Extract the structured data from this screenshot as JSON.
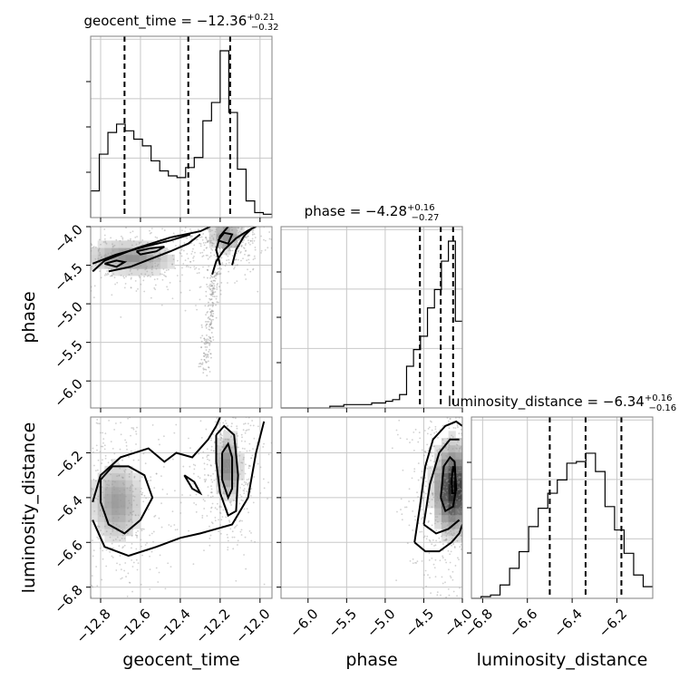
{
  "chart_data": {
    "type": "corner",
    "parameters": [
      "geocent_time",
      "phase",
      "luminosity_distance"
    ],
    "axis_labels": {
      "geocent_time": "geocent_time",
      "phase": "phase",
      "luminosity_distance": "luminosity_distance"
    },
    "ranges": {
      "geocent_time": [
        -12.85,
        -11.94
      ],
      "phase": [
        -6.35,
        -4.0
      ],
      "luminosity_distance": [
        -6.85,
        -6.04
      ]
    },
    "ticks": {
      "geocent_time": [
        {
          "v": -12.8,
          "label": "−12.8"
        },
        {
          "v": -12.6,
          "label": "−12.6"
        },
        {
          "v": -12.4,
          "label": "−12.4"
        },
        {
          "v": -12.2,
          "label": "−12.2"
        },
        {
          "v": -12.0,
          "label": "−12.0"
        }
      ],
      "phase": [
        {
          "v": -6.0,
          "label": "−6.0"
        },
        {
          "v": -5.5,
          "label": "−5.5"
        },
        {
          "v": -5.0,
          "label": "−5.0"
        },
        {
          "v": -4.5,
          "label": "−4.5"
        },
        {
          "v": -4.0,
          "label": "−4.0"
        }
      ],
      "luminosity_distance": [
        {
          "v": -6.8,
          "label": "−6.8"
        },
        {
          "v": -6.6,
          "label": "−6.6"
        },
        {
          "v": -6.4,
          "label": "−6.4"
        },
        {
          "v": -6.2,
          "label": "−6.2"
        }
      ]
    },
    "titles": {
      "geocent_time": {
        "main": "geocent_time = −12.36",
        "sup": "+0.21",
        "sub": "−0.32"
      },
      "phase": {
        "main": "phase = −4.28",
        "sup": "+0.16",
        "sub": "−0.27"
      },
      "luminosity_distance": {
        "main": "luminosity_distance = −6.34",
        "sup": "+0.16",
        "sub": "−0.16"
      }
    },
    "quantiles": {
      "geocent_time": [
        -12.68,
        -12.36,
        -12.15
      ],
      "phase": [
        -4.55,
        -4.28,
        -4.12
      ],
      "luminosity_distance": [
        -6.5,
        -6.34,
        -6.18
      ]
    },
    "histograms": {
      "geocent_time": {
        "edges_range": [
          -12.85,
          -11.94
        ],
        "counts": [
          0.16,
          0.38,
          0.51,
          0.56,
          0.52,
          0.47,
          0.43,
          0.34,
          0.28,
          0.25,
          0.24,
          0.3,
          0.36,
          0.58,
          0.69,
          1.0,
          0.63,
          0.29,
          0.1,
          0.03,
          0.02
        ]
      },
      "phase": {
        "edges_range": [
          -6.35,
          -4.0
        ],
        "counts": [
          0.0,
          0.0,
          0.0,
          0.0,
          0.0,
          0.0,
          0.0,
          0.01,
          0.01,
          0.02,
          0.02,
          0.02,
          0.02,
          0.03,
          0.03,
          0.04,
          0.05,
          0.08,
          0.25,
          0.35,
          0.43,
          0.6,
          0.71,
          0.88,
          1.0,
          0.52
        ]
      },
      "luminosity_distance": {
        "edges_range": [
          -6.85,
          -6.04
        ],
        "counts": [
          0.0,
          0.01,
          0.02,
          0.08,
          0.18,
          0.28,
          0.43,
          0.54,
          0.63,
          0.71,
          0.81,
          0.82,
          0.87,
          0.76,
          0.55,
          0.41,
          0.27,
          0.14,
          0.07
        ]
      }
    },
    "pairs": [
      {
        "x": "geocent_time",
        "y": "phase",
        "modes": [
          {
            "cx": -12.65,
            "cy": -4.4,
            "sx": 0.14,
            "sy": 0.12,
            "w": 0.5,
            "rot": -0.55
          },
          {
            "cx": -12.17,
            "cy": -4.12,
            "sx": 0.05,
            "sy": 0.12,
            "w": 0.5,
            "rot": 0.0
          }
        ],
        "tail": {
          "x0": -12.22,
          "y0": -4.6,
          "x1": -12.28,
          "y1": -5.9
        },
        "contours": [
          [
            [
              -12.84,
              -4.58
            ],
            [
              -12.78,
              -4.44
            ],
            [
              -12.62,
              -4.28
            ],
            [
              -12.45,
              -4.14
            ],
            [
              -12.3,
              -4.06
            ],
            [
              -12.25,
              -4.0
            ]
          ],
          [
            [
              -12.84,
              -4.48
            ],
            [
              -12.72,
              -4.36
            ],
            [
              -12.58,
              -4.26
            ],
            [
              -12.45,
              -4.18
            ],
            [
              -12.35,
              -4.1
            ]
          ],
          [
            [
              -12.76,
              -4.58
            ],
            [
              -12.65,
              -4.52
            ],
            [
              -12.55,
              -4.42
            ],
            [
              -12.45,
              -4.32
            ],
            [
              -12.36,
              -4.22
            ],
            [
              -12.3,
              -4.1
            ]
          ],
          [
            [
              -12.78,
              -4.48
            ],
            [
              -12.72,
              -4.44
            ],
            [
              -12.68,
              -4.46
            ],
            [
              -12.72,
              -4.52
            ],
            [
              -12.78,
              -4.48
            ]
          ],
          [
            [
              -12.62,
              -4.32
            ],
            [
              -12.55,
              -4.28
            ],
            [
              -12.48,
              -4.26
            ],
            [
              -12.52,
              -4.32
            ],
            [
              -12.6,
              -4.36
            ],
            [
              -12.62,
              -4.32
            ]
          ],
          [
            [
              -12.24,
              -4.62
            ],
            [
              -12.22,
              -4.45
            ],
            [
              -12.18,
              -4.3
            ],
            [
              -12.12,
              -4.15
            ],
            [
              -12.06,
              -4.05
            ],
            [
              -12.02,
              -4.0
            ]
          ],
          [
            [
              -12.2,
              -4.5
            ],
            [
              -12.22,
              -4.3
            ],
            [
              -12.2,
              -4.12
            ],
            [
              -12.16,
              -4.0
            ]
          ],
          [
            [
              -12.14,
              -4.5
            ],
            [
              -12.12,
              -4.3
            ],
            [
              -12.08,
              -4.12
            ],
            [
              -12.04,
              -4.02
            ]
          ],
          [
            [
              -12.21,
              -4.18
            ],
            [
              -12.18,
              -4.08
            ],
            [
              -12.14,
              -4.1
            ],
            [
              -12.16,
              -4.22
            ],
            [
              -12.21,
              -4.18
            ]
          ]
        ]
      },
      {
        "x": "geocent_time",
        "y": "luminosity_distance",
        "modes": [
          {
            "cx": -12.72,
            "cy": -6.42,
            "sx": 0.08,
            "sy": 0.11,
            "w": 0.45,
            "rot": 0.0
          },
          {
            "cx": -12.16,
            "cy": -6.26,
            "sx": 0.04,
            "sy": 0.09,
            "w": 0.55,
            "rot": 0.0
          }
        ],
        "contours": [
          [
            [
              -12.84,
              -6.42
            ],
            [
              -12.8,
              -6.3
            ],
            [
              -12.7,
              -6.22
            ],
            [
              -12.56,
              -6.18
            ],
            [
              -12.48,
              -6.24
            ],
            [
              -12.42,
              -6.2
            ],
            [
              -12.34,
              -6.22
            ],
            [
              -12.3,
              -6.18
            ],
            [
              -12.26,
              -6.14
            ],
            [
              -12.22,
              -6.08
            ],
            [
              -12.2,
              -6.04
            ]
          ],
          [
            [
              -12.84,
              -6.5
            ],
            [
              -12.78,
              -6.62
            ],
            [
              -12.66,
              -6.66
            ],
            [
              -12.52,
              -6.62
            ],
            [
              -12.4,
              -6.58
            ],
            [
              -12.3,
              -6.56
            ],
            [
              -12.22,
              -6.54
            ],
            [
              -12.14,
              -6.52
            ],
            [
              -12.06,
              -6.4
            ],
            [
              -12.02,
              -6.2
            ],
            [
              -11.98,
              -6.06
            ]
          ],
          [
            [
              -12.8,
              -6.32
            ],
            [
              -12.74,
              -6.26
            ],
            [
              -12.66,
              -6.26
            ],
            [
              -12.58,
              -6.3
            ],
            [
              -12.54,
              -6.4
            ],
            [
              -12.6,
              -6.5
            ],
            [
              -12.68,
              -6.56
            ],
            [
              -12.76,
              -6.52
            ],
            [
              -12.8,
              -6.42
            ],
            [
              -12.8,
              -6.32
            ]
          ],
          [
            [
              -12.38,
              -6.3
            ],
            [
              -12.33,
              -6.33
            ],
            [
              -12.3,
              -6.38
            ],
            [
              -12.34,
              -6.36
            ],
            [
              -12.38,
              -6.3
            ]
          ],
          [
            [
              -12.22,
              -6.12
            ],
            [
              -12.18,
              -6.08
            ],
            [
              -12.13,
              -6.12
            ],
            [
              -12.11,
              -6.3
            ],
            [
              -12.12,
              -6.46
            ],
            [
              -12.16,
              -6.48
            ],
            [
              -12.2,
              -6.38
            ],
            [
              -12.22,
              -6.24
            ],
            [
              -12.22,
              -6.12
            ]
          ],
          [
            [
              -12.19,
              -6.2
            ],
            [
              -12.16,
              -6.16
            ],
            [
              -12.14,
              -6.22
            ],
            [
              -12.14,
              -6.36
            ],
            [
              -12.16,
              -6.4
            ],
            [
              -12.19,
              -6.32
            ],
            [
              -12.19,
              -6.2
            ]
          ]
        ]
      },
      {
        "x": "phase",
        "y": "luminosity_distance",
        "modes": [
          {
            "cx": -4.12,
            "cy": -6.36,
            "sx": 0.15,
            "sy": 0.12,
            "w": 1.0,
            "rot": 0.0
          }
        ],
        "contours": [
          [
            [
              -4.62,
              -6.6
            ],
            [
              -4.55,
              -6.44
            ],
            [
              -4.48,
              -6.26
            ],
            [
              -4.38,
              -6.14
            ],
            [
              -4.22,
              -6.08
            ],
            [
              -4.08,
              -6.06
            ],
            [
              -4.0,
              -6.08
            ]
          ],
          [
            [
              -4.62,
              -6.6
            ],
            [
              -4.48,
              -6.64
            ],
            [
              -4.3,
              -6.64
            ],
            [
              -4.14,
              -6.6
            ],
            [
              -4.04,
              -6.56
            ],
            [
              -4.0,
              -6.52
            ]
          ],
          [
            [
              -4.5,
              -6.52
            ],
            [
              -4.42,
              -6.34
            ],
            [
              -4.3,
              -6.2
            ],
            [
              -4.16,
              -6.14
            ],
            [
              -4.04,
              -6.14
            ]
          ],
          [
            [
              -4.5,
              -6.52
            ],
            [
              -4.34,
              -6.56
            ],
            [
              -4.18,
              -6.54
            ],
            [
              -4.04,
              -6.5
            ]
          ],
          [
            [
              -4.28,
              -6.4
            ],
            [
              -4.24,
              -6.26
            ],
            [
              -4.16,
              -6.22
            ],
            [
              -4.1,
              -6.24
            ],
            [
              -4.08,
              -6.36
            ],
            [
              -4.12,
              -6.44
            ],
            [
              -4.22,
              -6.46
            ],
            [
              -4.28,
              -6.4
            ]
          ],
          [
            [
              -4.14,
              -6.32
            ],
            [
              -4.12,
              -6.26
            ],
            [
              -4.09,
              -6.3
            ],
            [
              -4.1,
              -6.38
            ],
            [
              -4.13,
              -6.38
            ],
            [
              -4.14,
              -6.32
            ]
          ]
        ]
      }
    ],
    "grid": true
  }
}
